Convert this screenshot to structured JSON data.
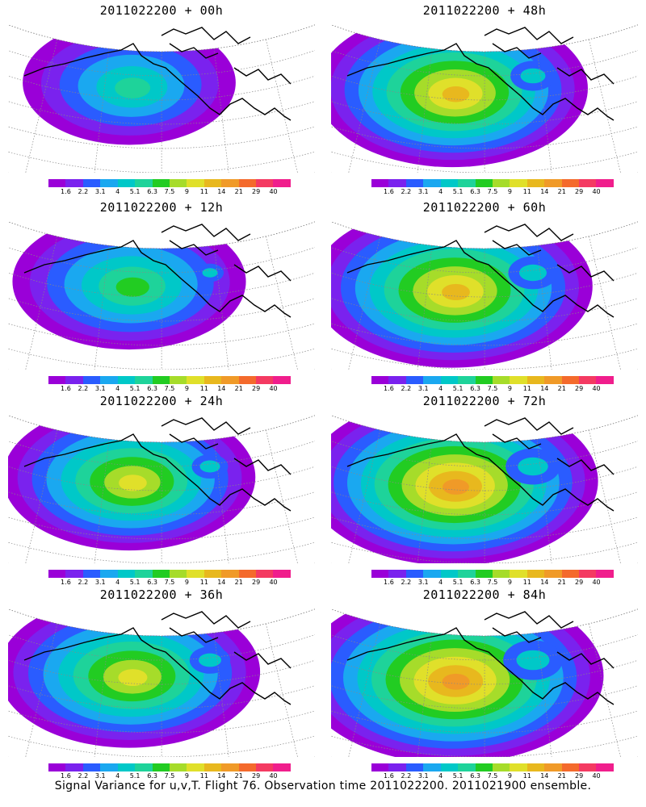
{
  "panels": [
    {
      "title": "2011022200 + 00h",
      "intensity": 0.25
    },
    {
      "title": "2011022200 + 48h",
      "intensity": 0.62
    },
    {
      "title": "2011022200 + 12h",
      "intensity": 0.38
    },
    {
      "title": "2011022200 + 60h",
      "intensity": 0.68
    },
    {
      "title": "2011022200 + 24h",
      "intensity": 0.5
    },
    {
      "title": "2011022200 + 72h",
      "intensity": 0.75
    },
    {
      "title": "2011022200 + 36h",
      "intensity": 0.56
    },
    {
      "title": "2011022200 + 84h",
      "intensity": 0.82
    }
  ],
  "colorbar": {
    "labels": [
      "1.6",
      "2.2",
      "3.1",
      "4",
      "5.1",
      "6.3",
      "7.5",
      "9",
      "11",
      "14",
      "21",
      "29",
      "40"
    ],
    "colors": [
      "#9a00d8",
      "#7a22ee",
      "#2a5cff",
      "#1aa8f0",
      "#00c8c8",
      "#1ed39a",
      "#22cc22",
      "#a6dc2a",
      "#e0e02a",
      "#e8b81e",
      "#f09a28",
      "#f46a2c",
      "#f43a62",
      "#f01e8c"
    ]
  },
  "caption": "Signal Variance for u,v,T. Flight 76. Observation time 2011022200. 2011021900 ensemble."
}
